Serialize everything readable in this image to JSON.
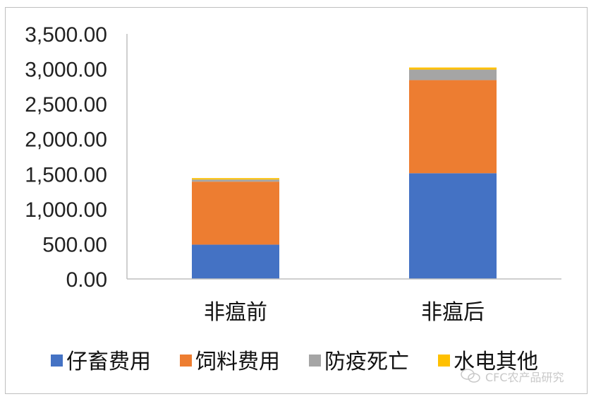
{
  "chart_data": {
    "type": "bar",
    "stacked": true,
    "categories": [
      "非瘟前",
      "非瘟后"
    ],
    "series": [
      {
        "name": "仔畜费用",
        "color": "#4472C4",
        "values": [
          490,
          1510
        ]
      },
      {
        "name": "饲料费用",
        "color": "#ED7D31",
        "values": [
          900,
          1330
        ]
      },
      {
        "name": "防疫死亡",
        "color": "#A5A5A5",
        "values": [
          30,
          150
        ]
      },
      {
        "name": "水电其他",
        "color": "#FFC000",
        "values": [
          20,
          30
        ]
      }
    ],
    "yticks": [
      "0.00",
      "500.00",
      "1,000.00",
      "1,500.00",
      "2,000.00",
      "2,500.00",
      "3,000.00",
      "3,500.00"
    ],
    "ylim": [
      0,
      3500
    ],
    "grid": false,
    "legend_position": "bottom"
  },
  "watermark": {
    "text": "CFC农产品研究",
    "icon": "wechat-icon"
  }
}
